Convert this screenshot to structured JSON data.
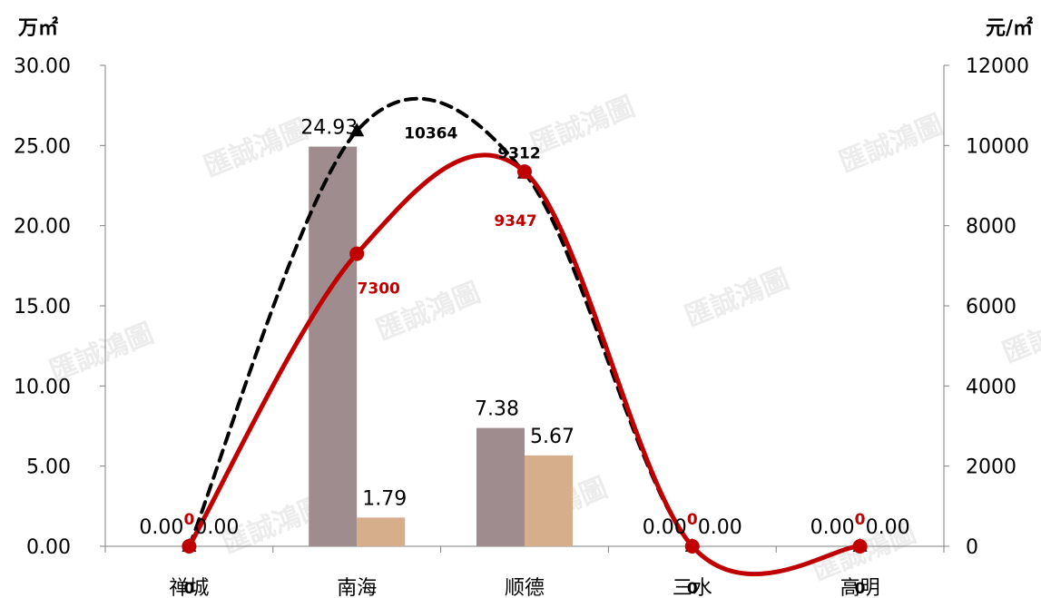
{
  "chart_data": {
    "type": "bar",
    "categories": [
      "禅城",
      "南海",
      "顺德",
      "三水",
      "高明"
    ],
    "left_axis": {
      "unit": "万㎡",
      "ticks": [
        "0.00",
        "5.00",
        "10.00",
        "15.00",
        "20.00",
        "25.00",
        "30.00"
      ],
      "ylim": [
        0,
        30
      ]
    },
    "right_axis": {
      "unit": "元/㎡",
      "ticks": [
        "0",
        "2000",
        "4000",
        "6000",
        "8000",
        "10000",
        "12000"
      ],
      "ylim": [
        0,
        12000
      ]
    },
    "bar_series": [
      {
        "color": "#9e8c8e",
        "values": [
          0.0,
          24.93,
          7.38,
          0.0,
          0.0
        ],
        "labels": [
          "0.00",
          "24.93",
          "7.38",
          "0.00",
          "0.00"
        ]
      },
      {
        "color": "#d7ae8c",
        "values": [
          0.0,
          1.79,
          5.67,
          0.0,
          0.0
        ],
        "labels": [
          "0.00",
          "1.79",
          "5.67",
          "0.00",
          "0.00"
        ]
      }
    ],
    "line_series": [
      {
        "style": "dashed",
        "color": "#000000",
        "marker": "triangle",
        "values": [
          0,
          10364,
          9312,
          0,
          0
        ],
        "labels": [
          "0",
          "10364",
          "9312",
          "0",
          "0"
        ]
      },
      {
        "style": "solid",
        "color": "#c00000",
        "marker": "circle",
        "values": [
          0,
          7300,
          9347,
          0,
          0
        ],
        "labels": [
          "0",
          "7300",
          "9347",
          "0",
          "0"
        ]
      }
    ],
    "grid": false,
    "legend": "none"
  },
  "watermark": "匯誠鴻圖"
}
